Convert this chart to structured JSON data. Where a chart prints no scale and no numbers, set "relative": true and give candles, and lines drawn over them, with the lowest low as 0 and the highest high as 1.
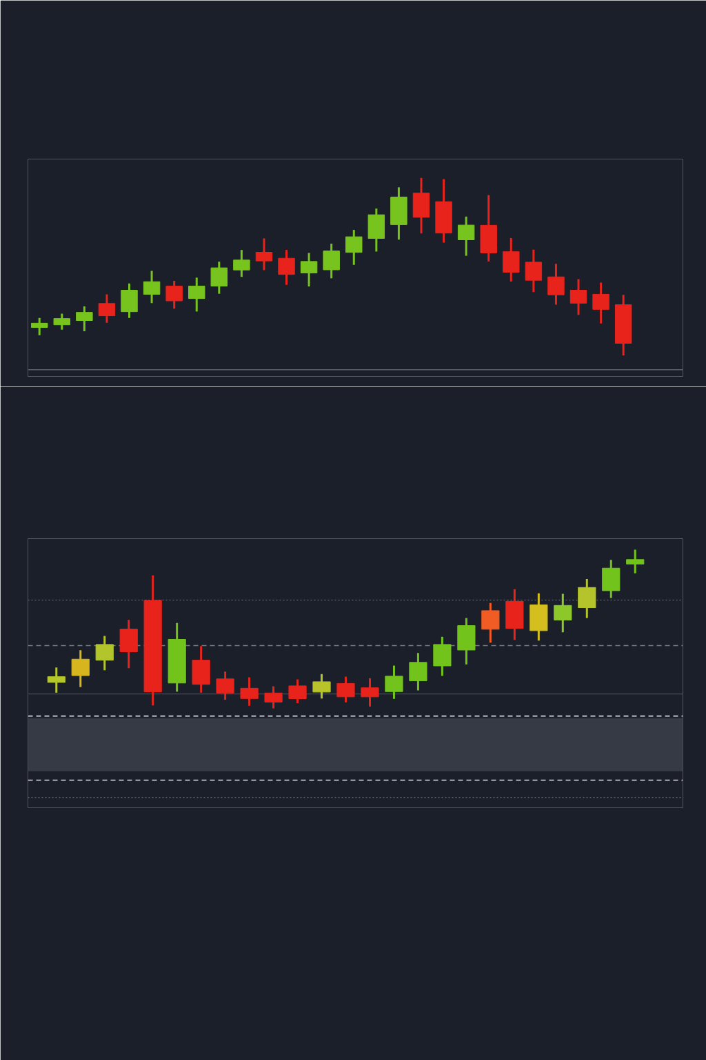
{
  "chart_data": [
    {
      "type": "candlestick",
      "relative": true,
      "grid": false,
      "tick_labels": false,
      "categories": [
        null,
        null,
        null,
        null,
        null,
        null,
        null,
        null,
        null,
        null,
        null,
        null,
        null,
        null,
        null,
        null,
        null,
        null,
        null,
        null,
        null,
        null,
        null,
        null,
        null,
        null,
        null
      ],
      "ohlc": [
        [
          0.157,
          0.211,
          0.113,
          0.181
        ],
        [
          0.172,
          0.235,
          0.144,
          0.207
        ],
        [
          0.196,
          0.276,
          0.136,
          0.242
        ],
        [
          0.292,
          0.344,
          0.183,
          0.223
        ],
        [
          0.246,
          0.405,
          0.211,
          0.367
        ],
        [
          0.344,
          0.476,
          0.294,
          0.415
        ],
        [
          0.39,
          0.42,
          0.263,
          0.307
        ],
        [
          0.32,
          0.438,
          0.247,
          0.39
        ],
        [
          0.39,
          0.528,
          0.347,
          0.493
        ],
        [
          0.481,
          0.594,
          0.442,
          0.537
        ],
        [
          0.581,
          0.659,
          0.48,
          0.532
        ],
        [
          0.547,
          0.594,
          0.397,
          0.456
        ],
        [
          0.464,
          0.577,
          0.388,
          0.529
        ],
        [
          0.482,
          0.629,
          0.434,
          0.588
        ],
        [
          0.58,
          0.707,
          0.51,
          0.668
        ],
        [
          0.659,
          0.827,
          0.585,
          0.792
        ],
        [
          0.737,
          0.947,
          0.652,
          0.892
        ],
        [
          0.914,
          1.0,
          0.687,
          0.778
        ],
        [
          0.866,
          0.993,
          0.635,
          0.689
        ],
        [
          0.651,
          0.782,
          0.561,
          0.734
        ],
        [
          0.733,
          0.903,
          0.529,
          0.577
        ],
        [
          0.584,
          0.661,
          0.416,
          0.468
        ],
        [
          0.525,
          0.596,
          0.356,
          0.423
        ],
        [
          0.442,
          0.516,
          0.285,
          0.341
        ],
        [
          0.367,
          0.429,
          0.228,
          0.294
        ],
        [
          0.344,
          0.41,
          0.179,
          0.259
        ],
        [
          0.285,
          0.341,
          0.0,
          0.068
        ]
      ],
      "colors": [
        "#78c41e",
        "#78c41e",
        "#78c41e",
        "#e8231c",
        "#78c41e",
        "#78c41e",
        "#e8231c",
        "#78c41e",
        "#78c41e",
        "#78c41e",
        "#e8231c",
        "#e8231c",
        "#78c41e",
        "#78c41e",
        "#78c41e",
        "#78c41e",
        "#78c41e",
        "#e8231c",
        "#e8231c",
        "#78c41e",
        "#e8231c",
        "#e8231c",
        "#e8231c",
        "#e8231c",
        "#e8231c",
        "#e8231c",
        "#e8231c"
      ],
      "ref_lines": [
        {
          "axis": "y",
          "value": -0.081,
          "color": "#5c606c",
          "line_style": "solid"
        }
      ]
    },
    {
      "type": "candlestick",
      "relative": true,
      "grid": false,
      "tick_labels": false,
      "categories": [
        null,
        null,
        null,
        null,
        null,
        null,
        null,
        null,
        null,
        null,
        null,
        null,
        null,
        null,
        null,
        null,
        null,
        null,
        null,
        null,
        null,
        null,
        null,
        null,
        null
      ],
      "ohlc": [
        [
          0.164,
          0.258,
          0.099,
          0.2
        ],
        [
          0.207,
          0.367,
          0.135,
          0.31
        ],
        [
          0.304,
          0.457,
          0.24,
          0.403
        ],
        [
          0.5,
          0.558,
          0.253,
          0.357
        ],
        [
          0.681,
          0.838,
          0.019,
          0.104
        ],
        [
          0.16,
          0.538,
          0.106,
          0.435
        ],
        [
          0.304,
          0.393,
          0.099,
          0.152
        ],
        [
          0.186,
          0.232,
          0.055,
          0.097
        ],
        [
          0.127,
          0.196,
          0.016,
          0.062
        ],
        [
          0.097,
          0.139,
          0.0,
          0.04
        ],
        [
          0.142,
          0.183,
          0.033,
          0.061
        ],
        [
          0.103,
          0.217,
          0.062,
          0.168
        ],
        [
          0.157,
          0.2,
          0.038,
          0.073
        ],
        [
          0.13,
          0.19,
          0.012,
          0.073
        ],
        [
          0.106,
          0.27,
          0.06,
          0.203
        ],
        [
          0.174,
          0.349,
          0.113,
          0.29
        ],
        [
          0.268,
          0.451,
          0.206,
          0.403
        ],
        [
          0.368,
          0.57,
          0.277,
          0.522
        ],
        [
          0.616,
          0.664,
          0.414,
          0.499
        ],
        [
          0.675,
          0.751,
          0.432,
          0.504
        ],
        [
          0.49,
          0.725,
          0.427,
          0.653
        ],
        [
          0.557,
          0.722,
          0.48,
          0.649
        ],
        [
          0.635,
          0.816,
          0.57,
          0.762
        ],
        [
          0.742,
          0.936,
          0.696,
          0.884
        ],
        [
          0.91,
          1.0,
          0.852,
          0.938
        ]
      ],
      "colors": [
        "#b5c82a",
        "#d6b51f",
        "#b2c62c",
        "#e8231c",
        "#e8231c",
        "#72c41c",
        "#e8231c",
        "#e8231c",
        "#e8231c",
        "#e8231c",
        "#e8231c",
        "#b8c42a",
        "#e8231c",
        "#e8231c",
        "#72c41c",
        "#72c41c",
        "#72c41c",
        "#72c41c",
        "#f05c23",
        "#e8231c",
        "#d4bf1f",
        "#8cc82a",
        "#b4c42a",
        "#72c41c",
        "#72c41c"
      ],
      "ref_lines": [
        {
          "axis": "y",
          "value": 0.683,
          "color": "#7a7e88",
          "line_style": "dotted"
        },
        {
          "axis": "y",
          "value": 0.396,
          "color": "#7a7e88",
          "line_style": "dashed"
        },
        {
          "axis": "y",
          "value": 0.091,
          "color": "#40444f",
          "line_style": "solid"
        },
        {
          "axis": "y",
          "value": -0.048,
          "color": "#d8dae0",
          "line_style": "dashed"
        },
        {
          "axis": "y",
          "value": -0.452,
          "color": "#d8dae0",
          "line_style": "dashed"
        },
        {
          "axis": "y",
          "value": -0.561,
          "color": "#5c606c",
          "line_style": "dotted"
        }
      ],
      "bands": [
        {
          "axis": "y",
          "from": -0.396,
          "to": -0.061,
          "color": "#3a3d48"
        }
      ]
    }
  ]
}
